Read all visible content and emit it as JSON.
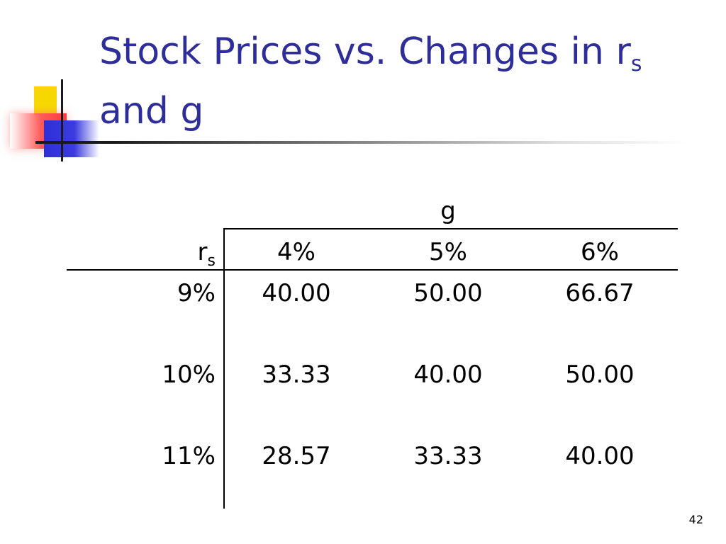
{
  "slide": {
    "title_main": "Stock Prices vs. Changes in r",
    "title_sub": "s",
    "title_line2": "and g",
    "page_number": "42"
  },
  "table": {
    "g_header": "g",
    "rs_header_main": "r",
    "rs_header_sub": "s",
    "g_values": [
      "4%",
      "5%",
      "6%"
    ],
    "rows": [
      {
        "rs": "9%",
        "prices": [
          "40.00",
          "50.00",
          "66.67"
        ]
      },
      {
        "rs": "10%",
        "prices": [
          "33.33",
          "40.00",
          "50.00"
        ]
      },
      {
        "rs": "11%",
        "prices": [
          "28.57",
          "33.33",
          "40.00"
        ]
      }
    ]
  },
  "colors": {
    "title": "#2e2e9a",
    "deco_yellow": "#f6d800",
    "deco_red": "#ff3b3b",
    "deco_blue": "#2f2fd8"
  }
}
